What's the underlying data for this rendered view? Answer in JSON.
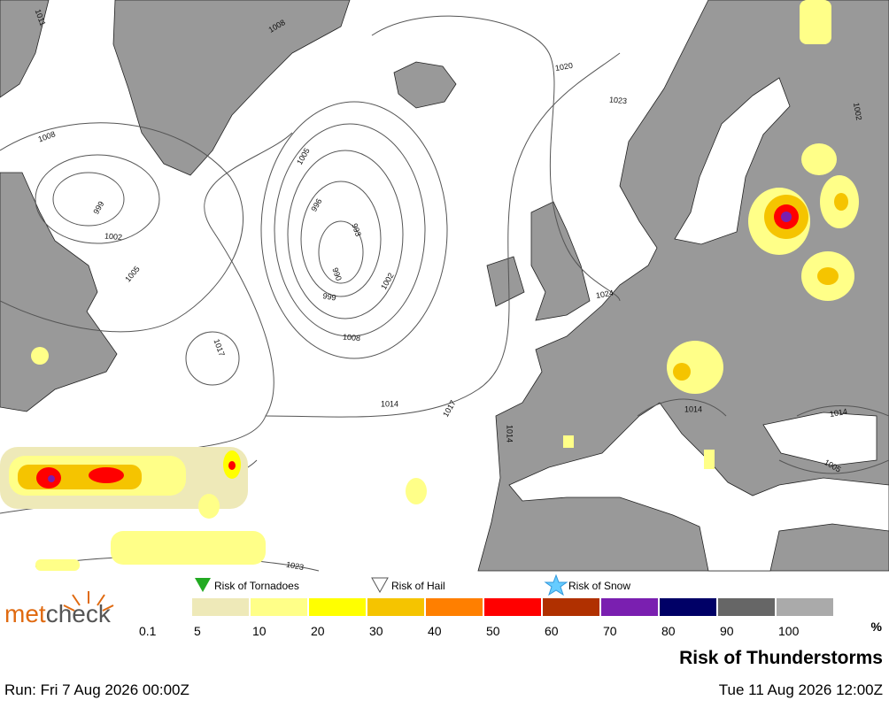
{
  "logo": {
    "part1": "met",
    "part2": "check"
  },
  "legend": {
    "markers": [
      "Risk of Tornadoes",
      "Risk of Hail",
      "Risk of Snow"
    ],
    "colors": [
      "#eee9b8",
      "#ffff88",
      "#ffff00",
      "#f5c400",
      "#ff7f00",
      "#ff0000",
      "#b03000",
      "#7a1fb0",
      "#000066",
      "#666666",
      "#aaaaaa"
    ],
    "labels": [
      "0.1",
      "5",
      "10",
      "20",
      "30",
      "40",
      "50",
      "60",
      "70",
      "80",
      "90",
      "100"
    ],
    "unit": "%"
  },
  "title": "Risk of Thunderstorms",
  "run": "Run: Fri 7 Aug 2026 00:00Z",
  "valid": "Tue 11 Aug 2026 12:00Z",
  "isobar_labels": [
    "1011",
    "1008",
    "999",
    "1002",
    "1005",
    "1008",
    "1005",
    "996",
    "993",
    "990",
    "999",
    "1002",
    "1008",
    "1017",
    "1014",
    "1017",
    "1020",
    "1023",
    "1024",
    "1014",
    "1014",
    "1014",
    "1005",
    "1002",
    "1023"
  ]
}
